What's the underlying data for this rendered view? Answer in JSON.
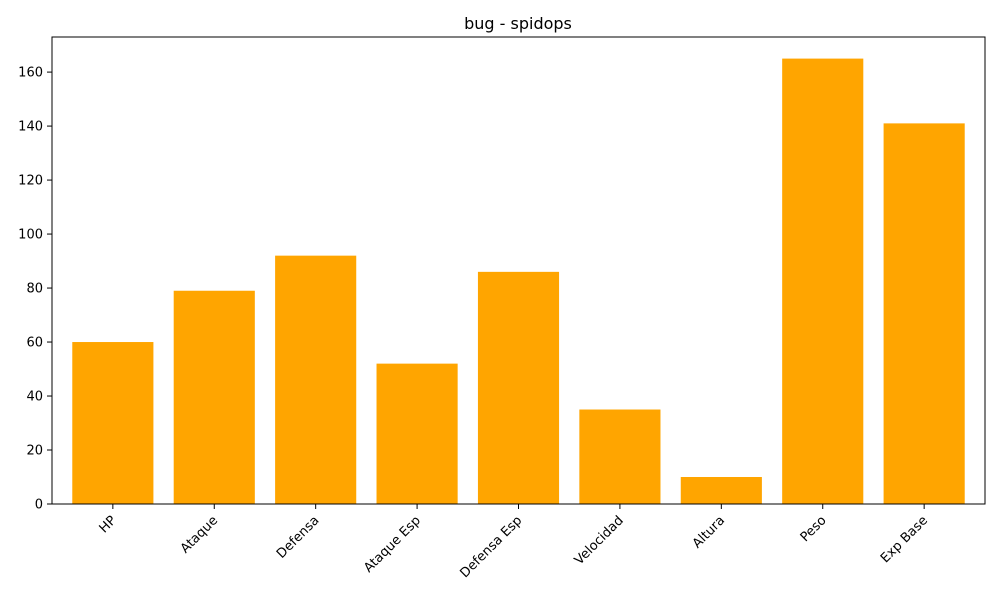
{
  "chart_data": {
    "type": "bar",
    "title": "bug - spidops",
    "xlabel": "",
    "ylabel": "",
    "categories": [
      "HP",
      "Ataque",
      "Defensa",
      "Ataque Esp",
      "Defensa Esp",
      "Velocidad",
      "Altura",
      "Peso",
      "Exp Base"
    ],
    "values": [
      60,
      79,
      92,
      52,
      86,
      35,
      10,
      165,
      141
    ],
    "ylim": [
      0,
      173
    ],
    "yticks": [
      0,
      20,
      40,
      60,
      80,
      100,
      120,
      140,
      160
    ],
    "bar_color": "#FFA500",
    "grid": false,
    "legend": "none"
  }
}
